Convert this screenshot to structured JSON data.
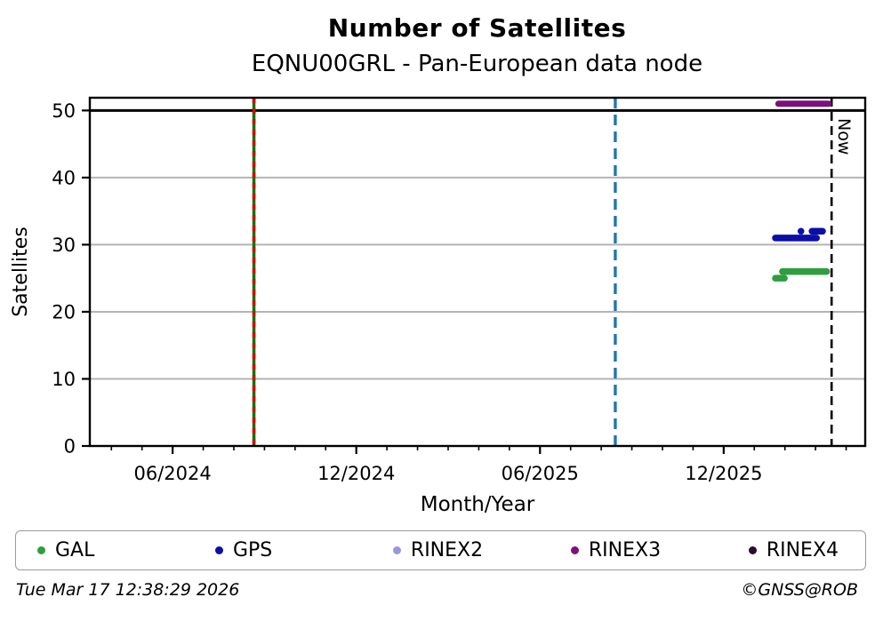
{
  "header": {
    "title": "Number of Satellites",
    "subtitle": "EQNU00GRL - Pan-European data node"
  },
  "chart_data": {
    "type": "scatter",
    "title": "Number of Satellites",
    "subtitle": "EQNU00GRL - Pan-European data node",
    "xlabel": "Month/Year",
    "ylabel": "Satellites",
    "x_domain": [
      "2024-03-10",
      "2026-04-20"
    ],
    "y_domain": [
      0,
      51.9
    ],
    "y_ticks": [
      0,
      10,
      20,
      30,
      40,
      50
    ],
    "x_major_ticks": [
      {
        "date": "2024-06-01",
        "label": "06/2024"
      },
      {
        "date": "2024-12-01",
        "label": "12/2024"
      },
      {
        "date": "2025-06-01",
        "label": "06/2025"
      },
      {
        "date": "2025-12-01",
        "label": "12/2025"
      }
    ],
    "grid": true,
    "grid_color": "#b4b4b4",
    "hlines": [
      {
        "y": 50,
        "color": "#000000",
        "width": 3
      }
    ],
    "vlines": [
      {
        "date": "2024-08-21",
        "color": "#007700",
        "dash": "none",
        "width": 3.5,
        "overlay": {
          "color": "#dd0000",
          "dash": "6 6",
          "width": 3.5
        },
        "name": "event-line-green-red"
      },
      {
        "date": "2025-08-15",
        "color": "#1f77b4",
        "dash": "12 7",
        "width": 3.4,
        "name": "event-line-blue"
      },
      {
        "date": "2026-03-17",
        "color": "#000000",
        "dash": "10 6",
        "width": 2.6,
        "label": "Now",
        "name": "now-line"
      }
    ],
    "series": [
      {
        "name": "GAL",
        "color": "#2e9e3e",
        "marker_width": 7.5,
        "runs": [
          {
            "start": "2026-01-22",
            "end": "2026-01-31",
            "y": 25
          },
          {
            "start": "2026-01-29",
            "end": "2026-03-12",
            "y": 26
          }
        ]
      },
      {
        "name": "GPS",
        "color": "#0d0da8",
        "marker_width": 7.5,
        "runs": [
          {
            "start": "2026-01-22",
            "end": "2026-03-02",
            "y": 31
          },
          {
            "start": "2026-02-17",
            "end": "2026-02-17",
            "y": 32
          },
          {
            "start": "2026-02-28",
            "end": "2026-03-08",
            "y": 32
          }
        ]
      },
      {
        "name": "RINEX2",
        "color": "#9898d8",
        "marker_width": 7,
        "runs": []
      },
      {
        "name": "RINEX3",
        "color": "#7d107d",
        "marker_width": 7,
        "runs": [
          {
            "start": "2026-01-25",
            "end": "2026-03-14",
            "y": 51
          }
        ]
      },
      {
        "name": "RINEX4",
        "color": "#2d0b30",
        "marker_width": 7,
        "runs": []
      }
    ],
    "legend_position": "bottom"
  },
  "legend": {
    "items": [
      {
        "label": "GAL",
        "color": "#2e9e3e"
      },
      {
        "label": "GPS",
        "color": "#0d0da8"
      },
      {
        "label": "RINEX2",
        "color": "#9898d8"
      },
      {
        "label": "RINEX3",
        "color": "#7d107d"
      },
      {
        "label": "RINEX4",
        "color": "#2d0b30"
      }
    ]
  },
  "footer": {
    "timestamp": "Tue Mar 17 12:38:29 2026",
    "credit": "©GNSS@ROB"
  }
}
